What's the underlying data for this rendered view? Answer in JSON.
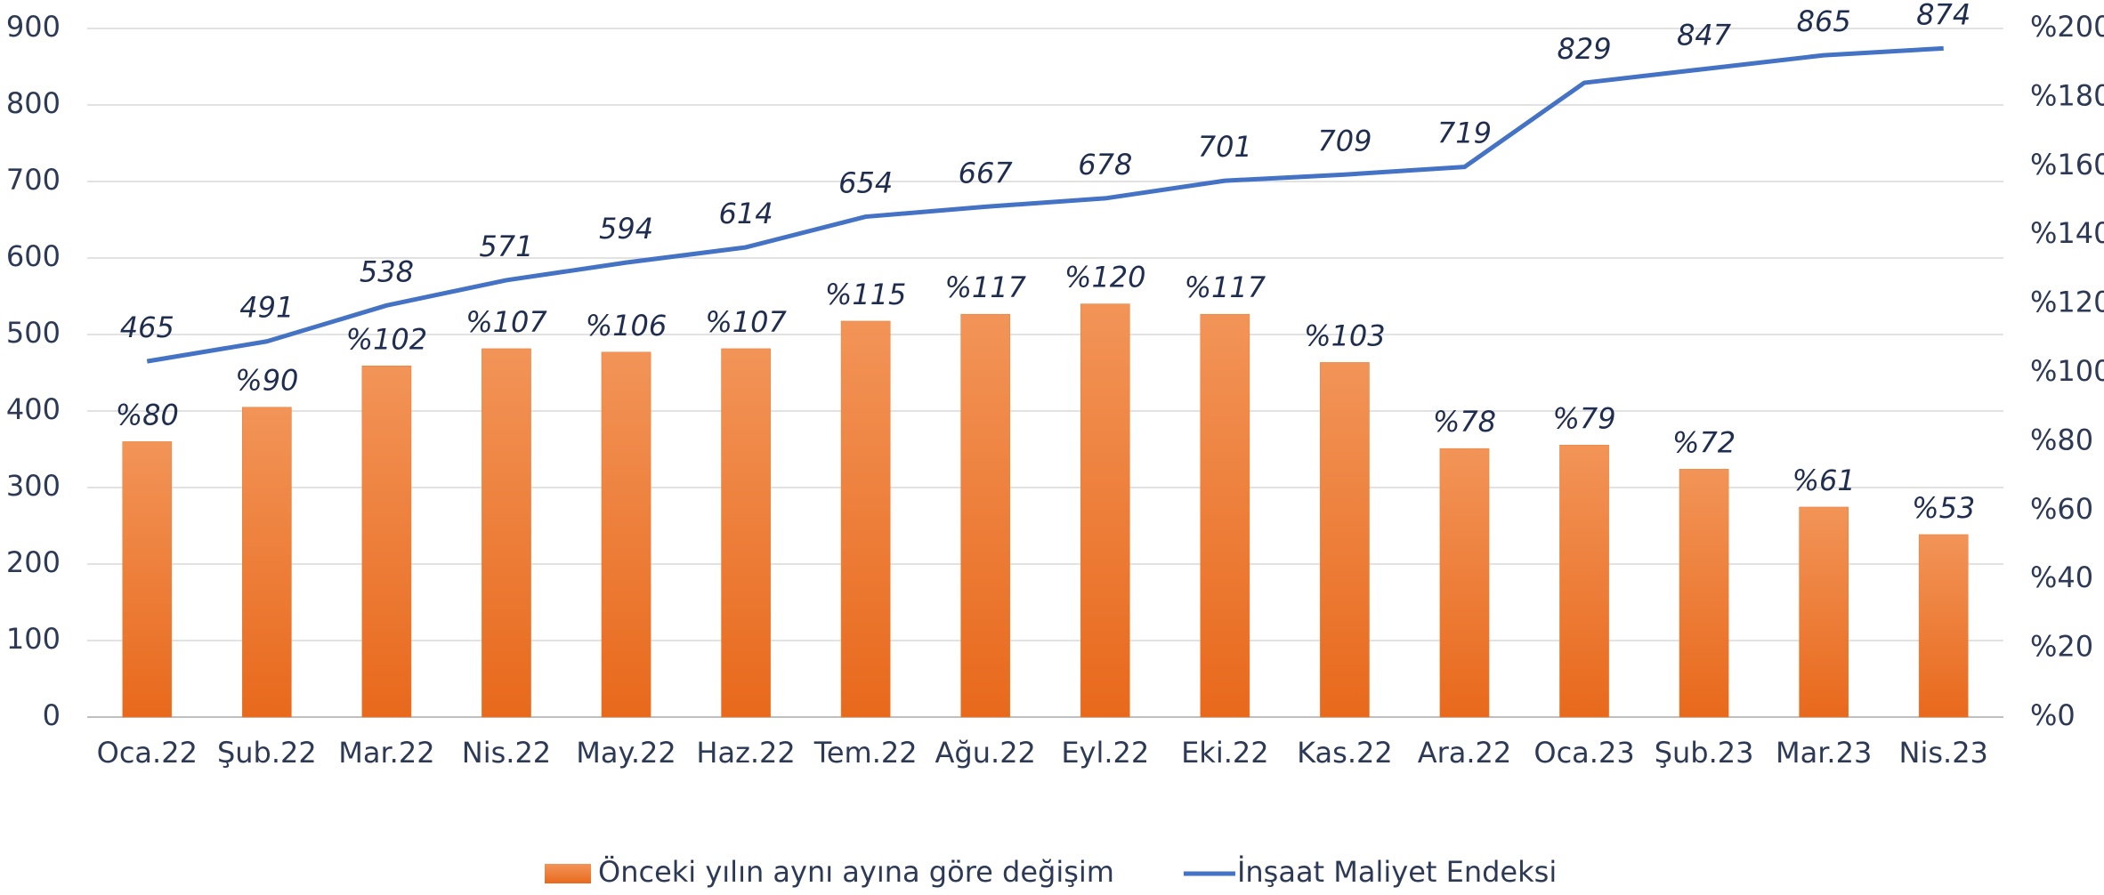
{
  "chart_data": {
    "type": "bar",
    "categories": [
      "Oca.22",
      "Şub.22",
      "Mar.22",
      "Nis.22",
      "May.22",
      "Haz.22",
      "Tem.22",
      "Ağu.22",
      "Eyl.22",
      "Eki.22",
      "Kas.22",
      "Ara.22",
      "Oca.23",
      "Şub.23",
      "Mar.23",
      "Nis.23"
    ],
    "series": [
      {
        "name": "Önceki yılın aynı ayına göre değişim",
        "type": "bar",
        "axis": "y2",
        "color": "#ed7d31",
        "values": [
          80,
          90,
          102,
          107,
          106,
          107,
          115,
          117,
          120,
          117,
          103,
          78,
          79,
          72,
          61,
          53
        ],
        "value_labels": [
          "%80",
          "%90",
          "%102",
          "%107",
          "%106",
          "%107",
          "%115",
          "%117",
          "%120",
          "%117",
          "%103",
          "%78",
          "%79",
          "%72",
          "%61",
          "%53"
        ]
      },
      {
        "name": "İnşaat Maliyet Endeksi",
        "type": "line",
        "axis": "y",
        "color": "#4472c4",
        "values": [
          465,
          491,
          538,
          571,
          594,
          614,
          654,
          667,
          678,
          701,
          709,
          719,
          829,
          847,
          865,
          874
        ]
      }
    ],
    "ylim": [
      0,
      900
    ],
    "yticks": [
      0,
      100,
      200,
      300,
      400,
      500,
      600,
      700,
      800,
      900
    ],
    "y2lim": [
      0,
      200
    ],
    "y2ticks": [
      {
        "value": 0,
        "label": "%0"
      },
      {
        "value": 20,
        "label": "%20"
      },
      {
        "value": 40,
        "label": "%40"
      },
      {
        "value": 60,
        "label": "%60"
      },
      {
        "value": 80,
        "label": "%80"
      },
      {
        "value": 100,
        "label": "%100"
      },
      {
        "value": 120,
        "label": "%120"
      },
      {
        "value": 140,
        "label": "%140"
      },
      {
        "value": 160,
        "label": "%160"
      },
      {
        "value": 180,
        "label": "%180"
      },
      {
        "value": 200,
        "label": "%200"
      }
    ],
    "grid": true,
    "legend": "bottom"
  }
}
